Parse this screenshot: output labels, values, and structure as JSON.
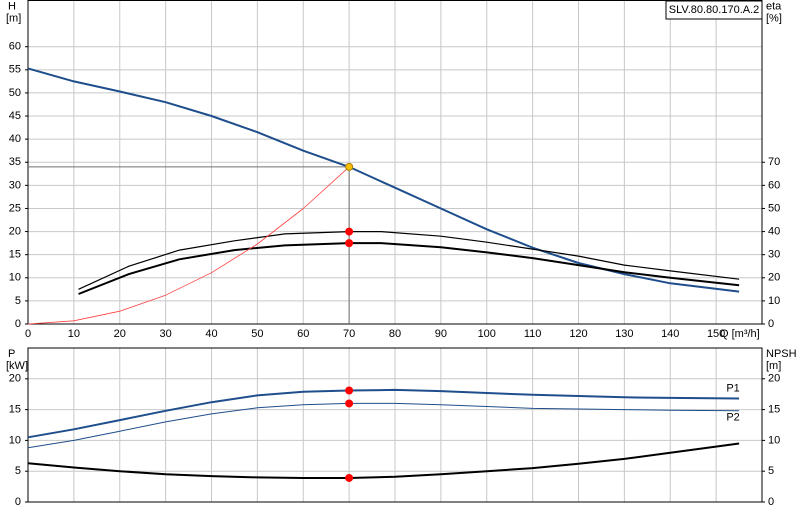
{
  "chart_data": [
    {
      "type": "line",
      "model": "SLV.80.80.170.A.2",
      "ylabel": "H",
      "yunit": "[m]",
      "y2label": "eta",
      "y2unit": "[%]",
      "xlabel": "Q [m³/h]",
      "xlim": [
        0,
        160
      ],
      "xticks": [
        0,
        10,
        20,
        30,
        40,
        50,
        60,
        70,
        80,
        90,
        100,
        110,
        120,
        130,
        140,
        150
      ],
      "ylim": [
        0,
        70
      ],
      "yticks": [
        0,
        5,
        10,
        15,
        20,
        25,
        30,
        35,
        40,
        45,
        50,
        55,
        60
      ],
      "y2lim": [
        0,
        140
      ],
      "y2ticks": [
        0,
        10,
        20,
        30,
        40,
        50,
        60,
        70
      ],
      "grid": true,
      "series": [
        {
          "color": "#1f4e8c",
          "linewidth": 2,
          "x": [
            0,
            10,
            20,
            30,
            40,
            50,
            60,
            70,
            80,
            90,
            100,
            110,
            120,
            130,
            140,
            155
          ],
          "values": [
            55.3,
            52.5,
            50.3,
            48,
            45,
            41.5,
            37.5,
            34,
            29.5,
            25,
            20.5,
            16.5,
            13.2,
            10.8,
            8.8,
            7
          ]
        },
        {
          "color": "#000000",
          "linewidth": 1.2,
          "axis": "y2",
          "x": [
            11,
            22,
            33,
            45,
            56,
            70,
            77,
            90,
            100,
            110,
            120,
            130,
            140,
            155
          ],
          "values": [
            15,
            25,
            32,
            36,
            39,
            40,
            40,
            38,
            35.4,
            32.4,
            29.4,
            25.5,
            23,
            19.4
          ]
        },
        {
          "color": "#000000",
          "linewidth": 2,
          "axis": "y2",
          "x": [
            11,
            22,
            33,
            45,
            56,
            70,
            77,
            90,
            100,
            110,
            120,
            130,
            140,
            155
          ],
          "values": [
            13,
            21.6,
            28,
            32,
            34,
            35,
            35,
            33.2,
            31,
            28.5,
            25.5,
            22.4,
            20,
            16.8
          ]
        },
        {
          "color": "#ff4040",
          "linewidth": 0.8,
          "x": [
            0,
            10,
            20,
            30,
            40,
            50,
            60,
            70
          ],
          "values": [
            0,
            0.69,
            2.78,
            6.24,
            11.1,
            17.3,
            25,
            34
          ]
        },
        {
          "style": "point",
          "guides": true,
          "color": "#f5c000",
          "x": [
            70
          ],
          "values": [
            34
          ]
        },
        {
          "style": "point",
          "color": "#ff0000",
          "axis": "y2",
          "x": [
            70,
            70
          ],
          "values": [
            40,
            35
          ]
        }
      ]
    },
    {
      "type": "line",
      "ylabel": "P",
      "yunit": "[kW]",
      "y2label": "NPSH",
      "y2unit": "[m]",
      "xlim": [
        0,
        160
      ],
      "xticks": [
        0,
        10,
        20,
        30,
        40,
        50,
        60,
        70,
        80,
        90,
        100,
        110,
        120,
        130,
        140,
        150
      ],
      "ylim": [
        0,
        25
      ],
      "yticks": [
        0,
        5,
        10,
        15,
        20
      ],
      "y2lim": [
        0,
        25
      ],
      "y2ticks": [
        0,
        5,
        10,
        15,
        20
      ],
      "grid": true,
      "series": [
        {
          "name": "P1",
          "color": "#1f4e8c",
          "linewidth": 2,
          "x": [
            0,
            10,
            20,
            30,
            40,
            50,
            60,
            70,
            80,
            90,
            100,
            110,
            120,
            130,
            140,
            155
          ],
          "values": [
            10.5,
            11.8,
            13.3,
            14.8,
            16.2,
            17.3,
            17.9,
            18.1,
            18.2,
            18,
            17.7,
            17.4,
            17.2,
            17,
            16.9,
            16.8
          ]
        },
        {
          "name": "P2",
          "color": "#1f4e8c",
          "linewidth": 1,
          "x": [
            0,
            10,
            20,
            30,
            40,
            50,
            60,
            70,
            80,
            90,
            100,
            110,
            120,
            130,
            140,
            155
          ],
          "values": [
            8.8,
            10,
            11.5,
            13,
            14.3,
            15.3,
            15.8,
            16,
            16,
            15.8,
            15.5,
            15.2,
            15.1,
            15,
            14.9,
            14.8
          ]
        },
        {
          "color": "#000000",
          "linewidth": 2,
          "axis": "y2",
          "x": [
            0,
            10,
            20,
            30,
            40,
            50,
            60,
            70,
            80,
            90,
            100,
            110,
            120,
            130,
            140,
            155
          ],
          "values": [
            6.3,
            5.6,
            5,
            4.5,
            4.2,
            4,
            3.9,
            3.9,
            4.1,
            4.5,
            5,
            5.5,
            6.2,
            7,
            8,
            9.5
          ]
        },
        {
          "style": "point",
          "color": "#ff0000",
          "x": [
            70,
            70
          ],
          "values": [
            18.1,
            16
          ]
        },
        {
          "style": "point",
          "color": "#ff0000",
          "axis": "y2",
          "x": [
            70
          ],
          "values": [
            3.9
          ]
        }
      ]
    }
  ]
}
